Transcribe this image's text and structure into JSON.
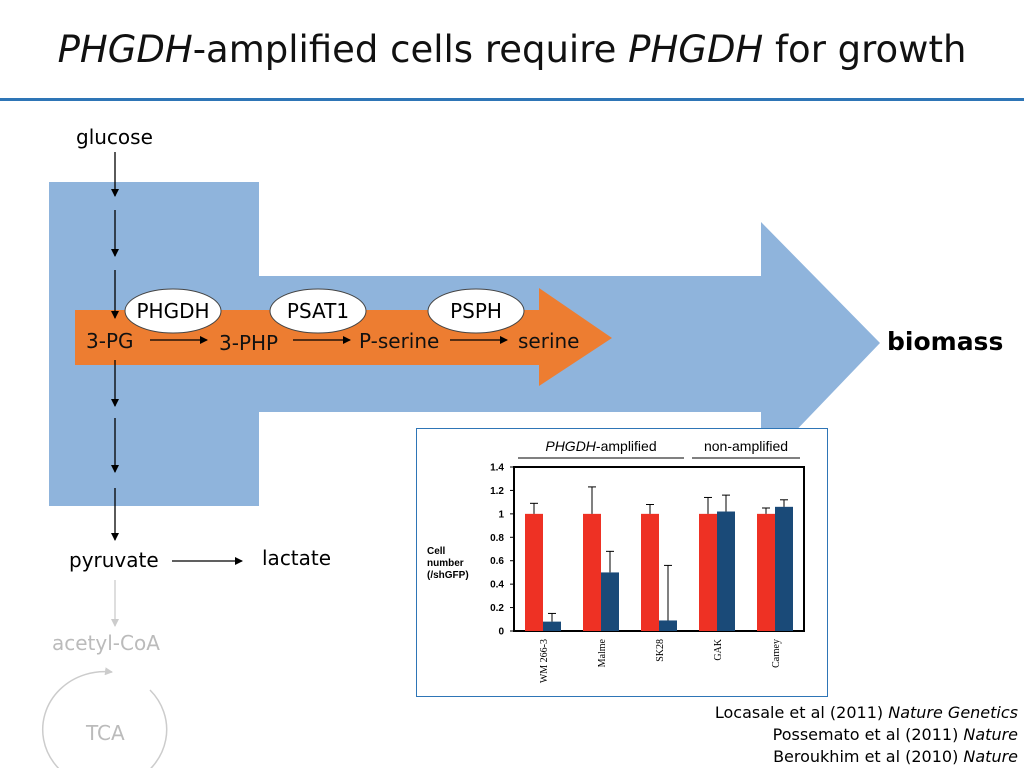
{
  "title": {
    "gene1": "PHGDH",
    "mid": "-amplified cells require ",
    "gene2": "PHGDH",
    "end": " for growth"
  },
  "colors": {
    "blue_arrow": "#8fb4dc",
    "orange_arrow": "#ed7d31",
    "accent_rule": "#2e75b6",
    "bar_red": "#ee3124",
    "bar_blue": "#1a4a78",
    "faded": "#bbbbbb"
  },
  "diagram": {
    "glucose": "glucose",
    "pg3": "3-PG",
    "php3": "3-PHP",
    "pserine": "P-serine",
    "serine": "serine",
    "enzymes": [
      "PHGDH",
      "PSAT1",
      "PSPH"
    ],
    "biomass": "biomass",
    "pyruvate": "pyruvate",
    "lactate": "lactate",
    "acetyl_coa": "acetyl-CoA",
    "tca": "TCA"
  },
  "chart_data": {
    "type": "bar",
    "groups": [
      {
        "label_italic": "PHGDH",
        "label_rest": "-amplified",
        "categories": [
          "WM 266-3",
          "Malme",
          "SK28"
        ]
      },
      {
        "label_italic": "",
        "label_rest": "non-amplified",
        "categories": [
          "GAK",
          "Carney"
        ]
      }
    ],
    "categories": [
      "WM 266-3",
      "Malme",
      "SK28",
      "GAK",
      "Carney"
    ],
    "ylabel_lines": [
      "Cell",
      "number",
      "(/shGFP)"
    ],
    "ylim": [
      0,
      1.4
    ],
    "yticks": [
      "0",
      "0.2",
      "0.4",
      "0.6",
      "0.8",
      "1",
      "1.2",
      "1.4"
    ],
    "series": [
      {
        "color": "#ee3124",
        "values": [
          1,
          1,
          1,
          1,
          1
        ],
        "errors": [
          0.09,
          0.23,
          0.08,
          0.14,
          0.05
        ]
      },
      {
        "color": "#1a4a78",
        "values": [
          0.08,
          0.5,
          0.09,
          1.02,
          1.06
        ],
        "errors": [
          0.07,
          0.18,
          0.47,
          0.14,
          0.06
        ]
      }
    ]
  },
  "references": [
    {
      "text": "Locasale et al (2011) ",
      "journal": "Nature Genetics"
    },
    {
      "text": "Possemato et al (2011) ",
      "journal": "Nature"
    },
    {
      "text": "Beroukhim et al (2010) ",
      "journal": "Nature"
    }
  ]
}
